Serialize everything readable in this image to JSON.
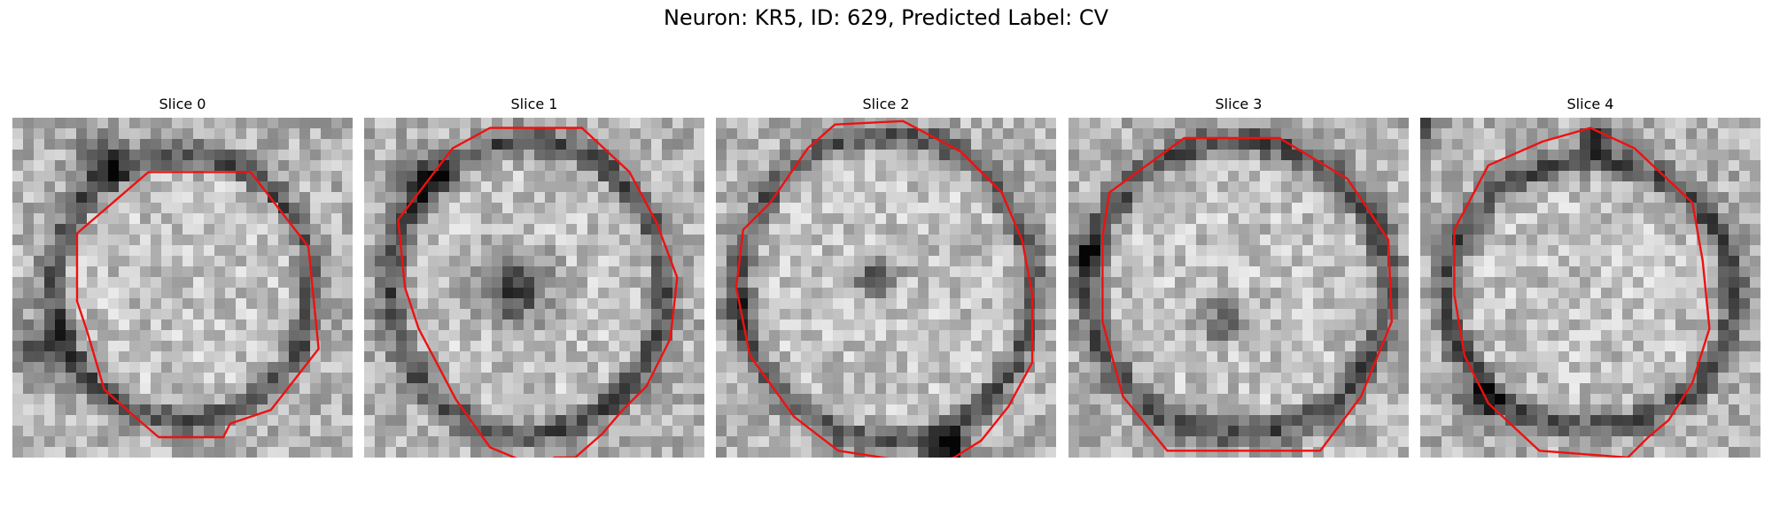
{
  "figure": {
    "title": "Neuron: KR5, ID: 629, Predicted Label: CV"
  },
  "colors": {
    "contour": "#ee1111",
    "background": "#ffffff"
  },
  "panels": [
    {
      "title": "Slice 0"
    },
    {
      "title": "Slice 1"
    },
    {
      "title": "Slice 2"
    },
    {
      "title": "Slice 3"
    },
    {
      "title": "Slice 4"
    }
  ]
}
